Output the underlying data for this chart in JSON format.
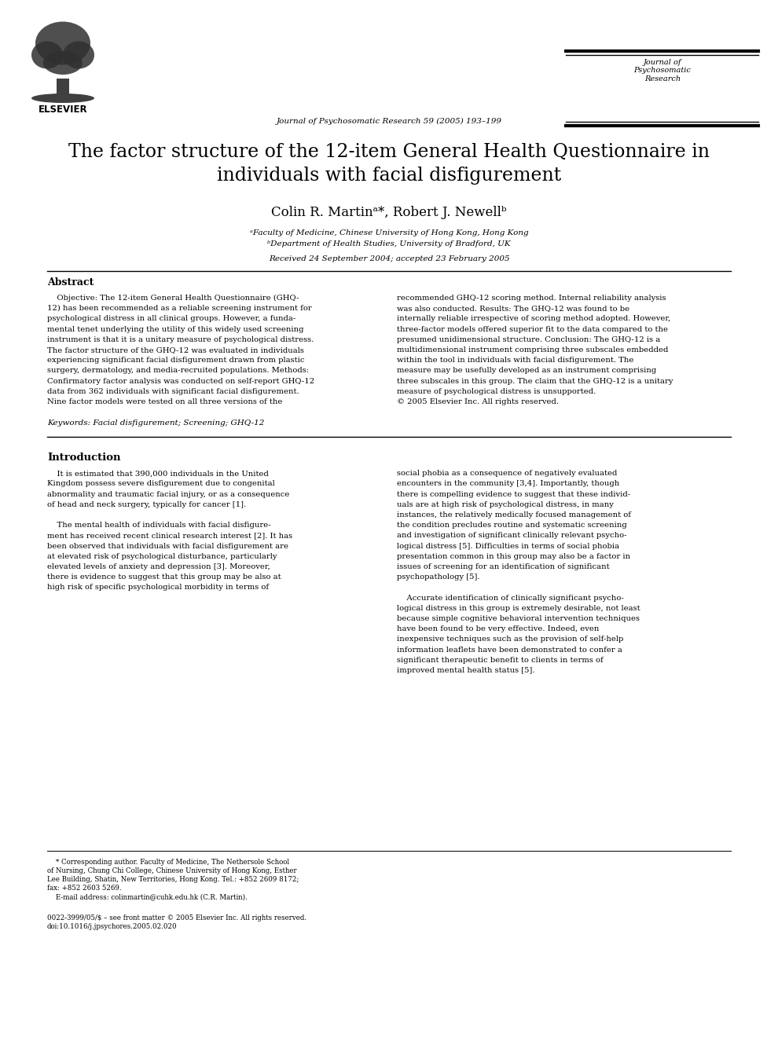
{
  "journal_header": "Journal of Psychosomatic Research 59 (2005) 193–199",
  "page_title_line1": "The factor structure of the 12-item General Health Questionnaire in",
  "page_title_line2": "individuals with facial disfigurement",
  "authors": "Colin R. Martinᵃ*, Robert J. Newellᵇ",
  "affil_a": "ᵃFaculty of Medicine, Chinese University of Hong Kong, Hong Kong",
  "affil_b": "ᵇDepartment of Health Studies, University of Bradford, UK",
  "received": "Received 24 September 2004; accepted 23 February 2005",
  "abstract_label": "Abstract",
  "abstract_left_lines": [
    "    Objective: The 12-item General Health Questionnaire (GHQ-",
    "12) has been recommended as a reliable screening instrument for",
    "psychological distress in all clinical groups. However, a funda-",
    "mental tenet underlying the utility of this widely used screening",
    "instrument is that it is a unitary measure of psychological distress.",
    "The factor structure of the GHQ-12 was evaluated in individuals",
    "experiencing significant facial disfigurement drawn from plastic",
    "surgery, dermatology, and media-recruited populations. Methods:",
    "Confirmatory factor analysis was conducted on self-report GHQ-12",
    "data from 362 individuals with significant facial disfigurement.",
    "Nine factor models were tested on all three versions of the"
  ],
  "abstract_right_lines": [
    "recommended GHQ-12 scoring method. Internal reliability analysis",
    "was also conducted. Results: The GHQ-12 was found to be",
    "internally reliable irrespective of scoring method adopted. However,",
    "three-factor models offered superior fit to the data compared to the",
    "presumed unidimensional structure. Conclusion: The GHQ-12 is a",
    "multidimensional instrument comprising three subscales embedded",
    "within the tool in individuals with facial disfigurement. The",
    "measure may be usefully developed as an instrument comprising",
    "three subscales in this group. The claim that the GHQ-12 is a unitary",
    "measure of psychological distress is unsupported.",
    "© 2005 Elsevier Inc. All rights reserved."
  ],
  "keywords": "Keywords: Facial disfigurement; Screening; GHQ-12",
  "intro_label": "Introduction",
  "intro_left_lines": [
    "    It is estimated that 390,000 individuals in the United",
    "Kingdom possess severe disfigurement due to congenital",
    "abnormality and traumatic facial injury, or as a consequence",
    "of head and neck surgery, typically for cancer [1].",
    "",
    "    The mental health of individuals with facial disfigure-",
    "ment has received recent clinical research interest [2]. It has",
    "been observed that individuals with facial disfigurement are",
    "at elevated risk of psychological disturbance, particularly",
    "elevated levels of anxiety and depression [3]. Moreover,",
    "there is evidence to suggest that this group may be also at",
    "high risk of specific psychological morbidity in terms of"
  ],
  "intro_right_lines": [
    "social phobia as a consequence of negatively evaluated",
    "encounters in the community [3,4]. Importantly, though",
    "there is compelling evidence to suggest that these individ-",
    "uals are at high risk of psychological distress, in many",
    "instances, the relatively medically focused management of",
    "the condition precludes routine and systematic screening",
    "and investigation of significant clinically relevant psycho-",
    "logical distress [5]. Difficulties in terms of social phobia",
    "presentation common in this group may also be a factor in",
    "issues of screening for an identification of significant",
    "psychopathology [5].",
    "",
    "    Accurate identification of clinically significant psycho-",
    "logical distress in this group is extremely desirable, not least",
    "because simple cognitive behavioral intervention techniques",
    "have been found to be very effective. Indeed, even",
    "inexpensive techniques such as the provision of self-help",
    "information leaflets have been demonstrated to confer a",
    "significant therapeutic benefit to clients in terms of",
    "improved mental health status [5]."
  ],
  "footer_note_lines": [
    "    * Corresponding author. Faculty of Medicine, The Nethersole School",
    "of Nursing, Chung Chi College, Chinese University of Hong Kong, Esther",
    "Lee Building, Shatin, New Territories, Hong Kong. Tel.: +852 2609 8172;",
    "fax: +852 2603 5269.",
    "    E-mail address: colinmartin@cuhk.edu.hk (C.R. Martin)."
  ],
  "footer_copy_lines": [
    "0022-3999/05/$ – see front matter © 2005 Elsevier Inc. All rights reserved.",
    "doi:10.1016/j.jpsychores.2005.02.020"
  ],
  "bg_color": "#ffffff"
}
